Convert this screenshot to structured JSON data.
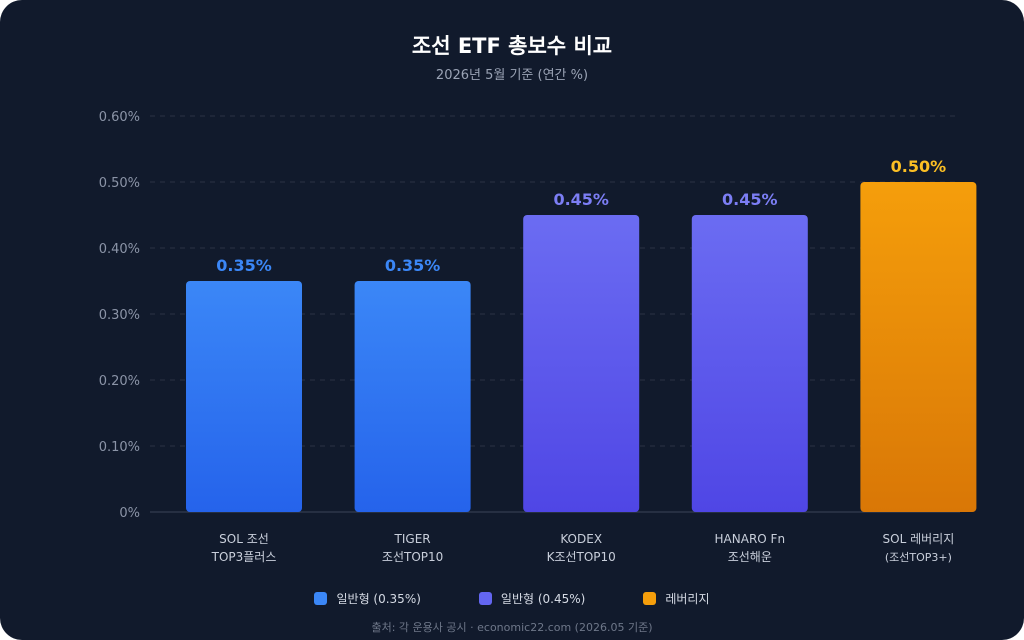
{
  "chart_data": {
    "type": "bar",
    "title": "조선 ETF 총보수 비교",
    "subtitle": "2026년 5월 기준 (연간 %)",
    "categories": [
      [
        "SOL 조선",
        "TOP3플러스"
      ],
      [
        "TIGER",
        "조선TOP10"
      ],
      [
        "KODEX",
        "K조선TOP10"
      ],
      [
        "HANARO Fn",
        "조선해운"
      ],
      [
        "SOL 레버리지",
        "(조선TOP3+)"
      ]
    ],
    "values": [
      0.35,
      0.35,
      0.45,
      0.45,
      0.5
    ],
    "value_labels": [
      "0.35%",
      "0.35%",
      "0.45%",
      "0.45%",
      "0.50%"
    ],
    "groups": [
      "blue",
      "blue",
      "purple",
      "purple",
      "orange"
    ],
    "yticks": [
      0,
      0.1,
      0.2,
      0.3,
      0.4,
      0.5,
      0.6
    ],
    "ytick_labels": [
      "0%",
      "0.10%",
      "0.20%",
      "0.30%",
      "0.40%",
      "0.50%",
      "0.60%"
    ],
    "ylim": [
      0,
      0.6
    ],
    "grid": true,
    "legend_position": "bottom",
    "legend": [
      {
        "label": "일반형 (0.35%)",
        "group": "blue"
      },
      {
        "label": "일반형 (0.45%)",
        "group": "purple"
      },
      {
        "label": "레버리지",
        "group": "orange"
      }
    ],
    "colors": {
      "blue": {
        "top": "#3b87f7",
        "bottom": "#2563eb",
        "label": "#3b87f7"
      },
      "purple": {
        "top": "#6b6cf2",
        "bottom": "#4f46e5",
        "label": "#7c7ef5"
      },
      "orange": {
        "top": "#f59e0b",
        "bottom": "#d97706",
        "label": "#fbbf24"
      }
    }
  },
  "source": "출처: 각 운용사 공시 · economic22.com (2026.05 기준)"
}
